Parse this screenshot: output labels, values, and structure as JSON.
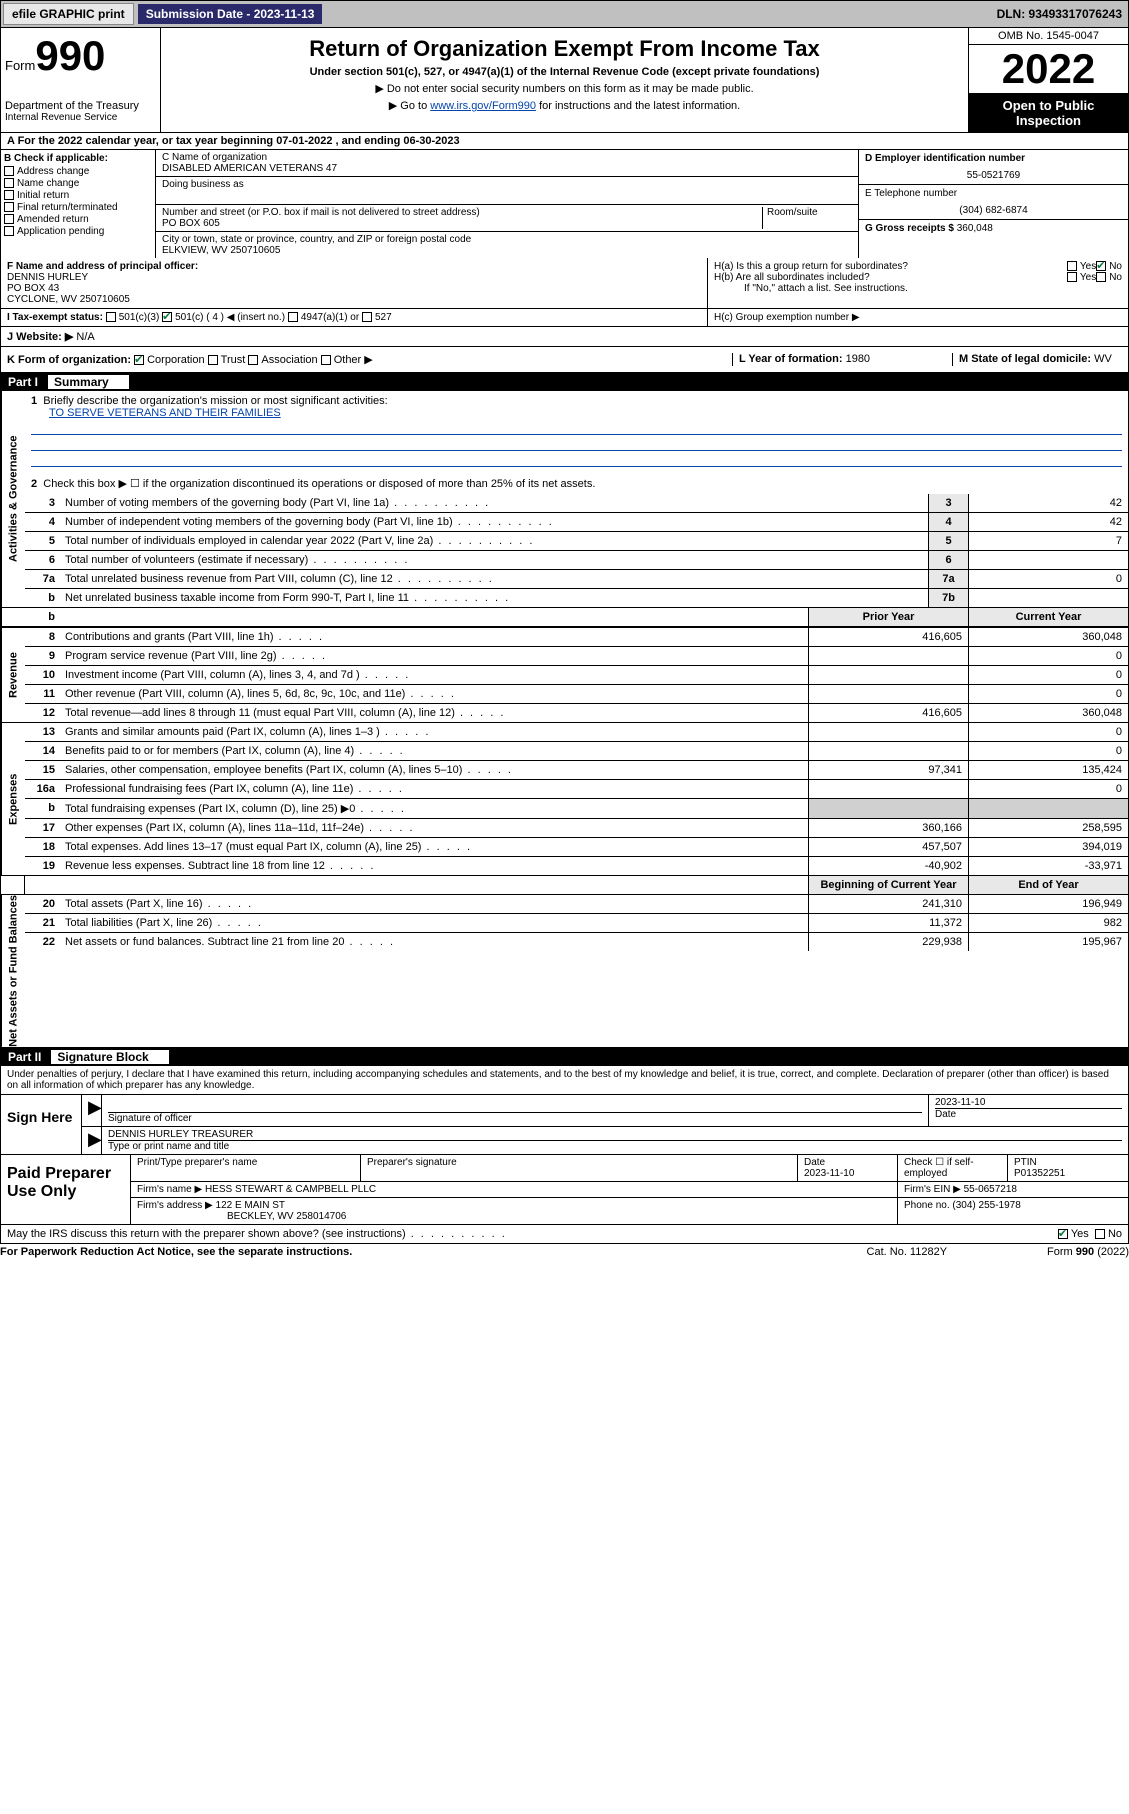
{
  "topbar": {
    "efile": "efile GRAPHIC print",
    "subdate_label": "Submission Date - 2023-11-13",
    "dln": "DLN: 93493317076243"
  },
  "header": {
    "form_label": "Form",
    "form_num": "990",
    "dept": "Department of the Treasury",
    "irs": "Internal Revenue Service",
    "title": "Return of Organization Exempt From Income Tax",
    "sub1": "Under section 501(c), 527, or 4947(a)(1) of the Internal Revenue Code (except private foundations)",
    "sub2a": "▶ Do not enter social security numbers on this form as it may be made public.",
    "sub2b_pre": "▶ Go to ",
    "sub2b_link": "www.irs.gov/Form990",
    "sub2b_post": " for instructions and the latest information.",
    "omb": "OMB No. 1545-0047",
    "year": "2022",
    "open": "Open to Public Inspection"
  },
  "row_a": "A For the 2022 calendar year, or tax year beginning 07-01-2022   , and ending 06-30-2023",
  "col_b": {
    "hdr": "B Check if applicable:",
    "opts": [
      "Address change",
      "Name change",
      "Initial return",
      "Final return/terminated",
      "Amended return",
      "Application pending"
    ]
  },
  "col_c": {
    "name_lbl": "C Name of organization",
    "name": "DISABLED AMERICAN VETERANS 47",
    "dba_lbl": "Doing business as",
    "dba": "",
    "addr_lbl": "Number and street (or P.O. box if mail is not delivered to street address)",
    "room_lbl": "Room/suite",
    "addr": "PO BOX 605",
    "city_lbl": "City or town, state or province, country, and ZIP or foreign postal code",
    "city": "ELKVIEW, WV  250710605"
  },
  "col_d": {
    "ein_lbl": "D Employer identification number",
    "ein": "55-0521769",
    "tel_lbl": "E Telephone number",
    "tel": "(304) 682-6874",
    "gross_lbl": "G Gross receipts $",
    "gross": "360,048"
  },
  "row_f": {
    "lbl": "F Name and address of principal officer:",
    "name": "DENNIS HURLEY",
    "addr1": "PO BOX 43",
    "addr2": "CYCLONE, WV  250710605"
  },
  "row_h": {
    "ha": "H(a)  Is this a group return for subordinates?",
    "hb": "H(b)  Are all subordinates included?",
    "hb2": "If \"No,\" attach a list. See instructions.",
    "hc": "H(c)  Group exemption number ▶"
  },
  "row_i": {
    "lbl": "I     Tax-exempt status:",
    "opts": [
      "501(c)(3)",
      "501(c) ( 4 ) ◀ (insert no.)",
      "4947(a)(1) or",
      "527"
    ]
  },
  "row_j": {
    "lbl": "J    Website: ▶",
    "val": "N/A"
  },
  "row_k": {
    "lbl": "K Form of organization:",
    "opts": [
      "Corporation",
      "Trust",
      "Association",
      "Other ▶"
    ],
    "l_lbl": "L Year of formation:",
    "l_val": "1980",
    "m_lbl": "M State of legal domicile:",
    "m_val": "WV"
  },
  "part1": {
    "num": "Part I",
    "title": "Summary",
    "q1_lbl": "Briefly describe the organization's mission or most significant activities:",
    "q1_val": "TO SERVE VETERANS AND THEIR FAMILIES",
    "q2": "Check this box ▶ ☐  if the organization discontinued its operations or disposed of more than 25% of its net assets.",
    "side_gov": "Activities & Governance",
    "side_rev": "Revenue",
    "side_exp": "Expenses",
    "side_net": "Net Assets or Fund Balances",
    "rows_gov": [
      {
        "n": "3",
        "t": "Number of voting members of the governing body (Part VI, line 1a)",
        "box": "3",
        "v": "42"
      },
      {
        "n": "4",
        "t": "Number of independent voting members of the governing body (Part VI, line 1b)",
        "box": "4",
        "v": "42"
      },
      {
        "n": "5",
        "t": "Total number of individuals employed in calendar year 2022 (Part V, line 2a)",
        "box": "5",
        "v": "7"
      },
      {
        "n": "6",
        "t": "Total number of volunteers (estimate if necessary)",
        "box": "6",
        "v": ""
      },
      {
        "n": "7a",
        "t": "Total unrelated business revenue from Part VIII, column (C), line 12",
        "box": "7a",
        "v": "0"
      },
      {
        "n": "b",
        "t": "Net unrelated business taxable income from Form 990-T, Part I, line 11",
        "box": "7b",
        "v": ""
      }
    ],
    "hdr_prior": "Prior Year",
    "hdr_cur": "Current Year",
    "rows_rev": [
      {
        "n": "8",
        "t": "Contributions and grants (Part VIII, line 1h)",
        "p": "416,605",
        "c": "360,048"
      },
      {
        "n": "9",
        "t": "Program service revenue (Part VIII, line 2g)",
        "p": "",
        "c": "0"
      },
      {
        "n": "10",
        "t": "Investment income (Part VIII, column (A), lines 3, 4, and 7d )",
        "p": "",
        "c": "0"
      },
      {
        "n": "11",
        "t": "Other revenue (Part VIII, column (A), lines 5, 6d, 8c, 9c, 10c, and 11e)",
        "p": "",
        "c": "0"
      },
      {
        "n": "12",
        "t": "Total revenue—add lines 8 through 11 (must equal Part VIII, column (A), line 12)",
        "p": "416,605",
        "c": "360,048"
      }
    ],
    "rows_exp": [
      {
        "n": "13",
        "t": "Grants and similar amounts paid (Part IX, column (A), lines 1–3 )",
        "p": "",
        "c": "0"
      },
      {
        "n": "14",
        "t": "Benefits paid to or for members (Part IX, column (A), line 4)",
        "p": "",
        "c": "0"
      },
      {
        "n": "15",
        "t": "Salaries, other compensation, employee benefits (Part IX, column (A), lines 5–10)",
        "p": "97,341",
        "c": "135,424"
      },
      {
        "n": "16a",
        "t": "Professional fundraising fees (Part IX, column (A), line 11e)",
        "p": "",
        "c": "0"
      },
      {
        "n": "b",
        "t": "Total fundraising expenses (Part IX, column (D), line 25) ▶0",
        "p": "gray",
        "c": "gray"
      },
      {
        "n": "17",
        "t": "Other expenses (Part IX, column (A), lines 11a–11d, 11f–24e)",
        "p": "360,166",
        "c": "258,595"
      },
      {
        "n": "18",
        "t": "Total expenses. Add lines 13–17 (must equal Part IX, column (A), line 25)",
        "p": "457,507",
        "c": "394,019"
      },
      {
        "n": "19",
        "t": "Revenue less expenses. Subtract line 18 from line 12",
        "p": "-40,902",
        "c": "-33,971"
      }
    ],
    "hdr_beg": "Beginning of Current Year",
    "hdr_end": "End of Year",
    "rows_net": [
      {
        "n": "20",
        "t": "Total assets (Part X, line 16)",
        "p": "241,310",
        "c": "196,949"
      },
      {
        "n": "21",
        "t": "Total liabilities (Part X, line 26)",
        "p": "11,372",
        "c": "982"
      },
      {
        "n": "22",
        "t": "Net assets or fund balances. Subtract line 21 from line 20",
        "p": "229,938",
        "c": "195,967"
      }
    ]
  },
  "part2": {
    "num": "Part II",
    "title": "Signature Block",
    "decl": "Under penalties of perjury, I declare that I have examined this return, including accompanying schedules and statements, and to the best of my knowledge and belief, it is true, correct, and complete. Declaration of preparer (other than officer) is based on all information of which preparer has any knowledge.",
    "sign_here": "Sign Here",
    "sig_lbl": "Signature of officer",
    "date_lbl": "Date",
    "date_val": "2023-11-10",
    "name_lbl": "Type or print name and title",
    "name_val": "DENNIS HURLEY  TREASURER",
    "paid": "Paid Preparer Use Only",
    "prep_name_lbl": "Print/Type preparer's name",
    "prep_sig_lbl": "Preparer's signature",
    "prep_date_lbl": "Date",
    "prep_date": "2023-11-10",
    "prep_check_lbl": "Check ☐ if self-employed",
    "ptin_lbl": "PTIN",
    "ptin": "P01352251",
    "firm_name_lbl": "Firm's name   ▶",
    "firm_name": "HESS STEWART & CAMPBELL PLLC",
    "firm_ein_lbl": "Firm's EIN ▶",
    "firm_ein": "55-0657218",
    "firm_addr_lbl": "Firm's address ▶",
    "firm_addr1": "122 E MAIN ST",
    "firm_addr2": "BECKLEY, WV  258014706",
    "phone_lbl": "Phone no.",
    "phone": "(304) 255-1978",
    "may_irs": "May the IRS discuss this return with the preparer shown above? (see instructions)",
    "paperwork": "For Paperwork Reduction Act Notice, see the separate instructions.",
    "catno": "Cat. No. 11282Y",
    "formno": "Form 990 (2022)"
  }
}
